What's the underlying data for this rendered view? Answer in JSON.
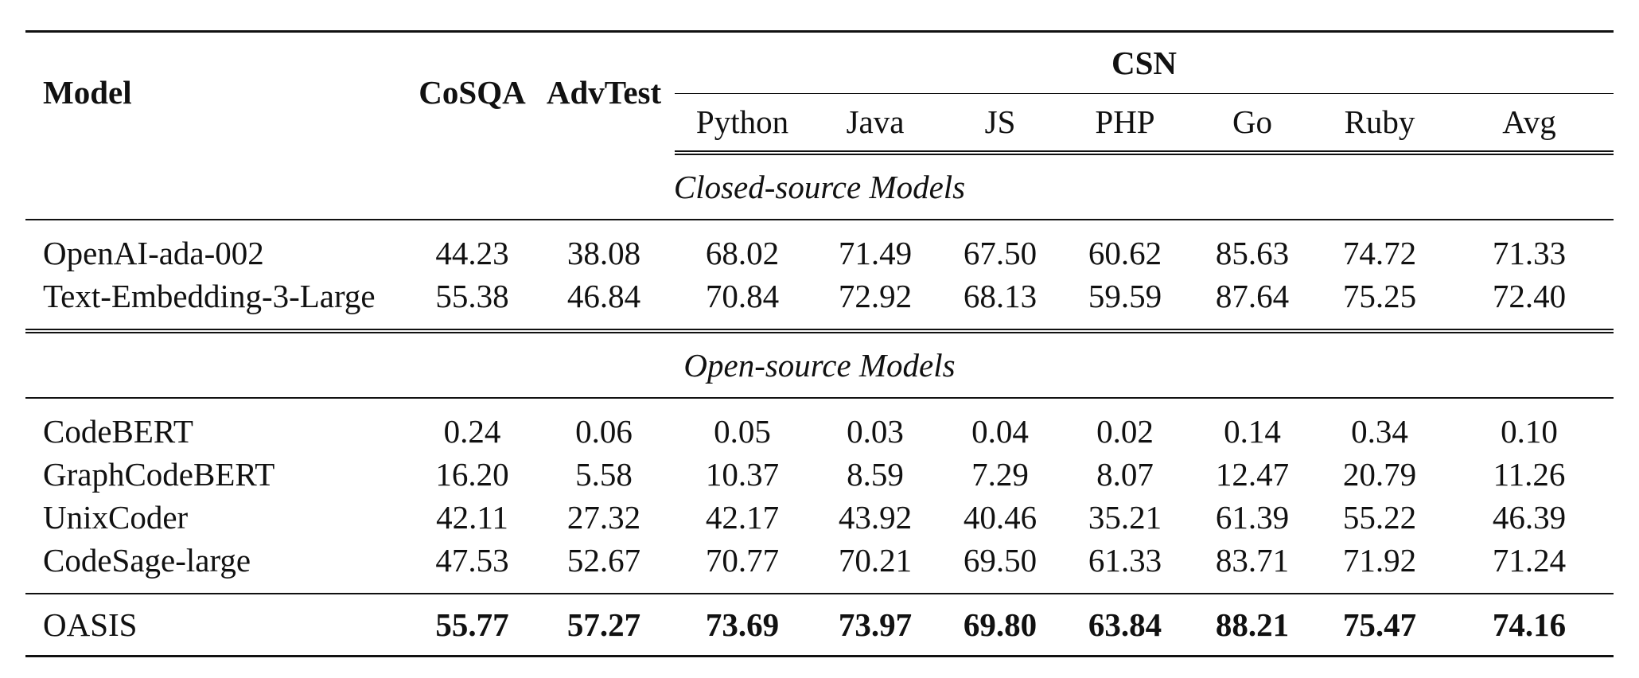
{
  "table": {
    "headers": {
      "model": "Model",
      "cosqa": "CoSQA",
      "advtest": "AdvTest",
      "csn": "CSN",
      "csn_sub": [
        "Python",
        "Java",
        "JS",
        "PHP",
        "Go",
        "Ruby",
        "Avg"
      ]
    },
    "sections": [
      {
        "title": "Closed-source Models",
        "rows": [
          {
            "model": "OpenAI-ada-002",
            "values": [
              "44.23",
              "38.08",
              "68.02",
              "71.49",
              "67.50",
              "60.62",
              "85.63",
              "74.72",
              "71.33"
            ]
          },
          {
            "model": "Text-Embedding-3-Large",
            "values": [
              "55.38",
              "46.84",
              "70.84",
              "72.92",
              "68.13",
              "59.59",
              "87.64",
              "75.25",
              "72.40"
            ]
          }
        ]
      },
      {
        "title": "Open-source Models",
        "rows": [
          {
            "model": "CodeBERT",
            "values": [
              "0.24",
              "0.06",
              "0.05",
              "0.03",
              "0.04",
              "0.02",
              "0.14",
              "0.34",
              "0.10"
            ]
          },
          {
            "model": "GraphCodeBERT",
            "values": [
              "16.20",
              "5.58",
              "10.37",
              "8.59",
              "7.29",
              "8.07",
              "12.47",
              "20.79",
              "11.26"
            ]
          },
          {
            "model": "UnixCoder",
            "values": [
              "42.11",
              "27.32",
              "42.17",
              "43.92",
              "40.46",
              "35.21",
              "61.39",
              "55.22",
              "46.39"
            ]
          },
          {
            "model": "CodeSage-large",
            "values": [
              "47.53",
              "52.67",
              "70.77",
              "70.21",
              "69.50",
              "61.33",
              "83.71",
              "71.92",
              "71.24"
            ]
          }
        ]
      }
    ],
    "highlight_row": {
      "model": "OASIS",
      "values": [
        "55.77",
        "57.27",
        "73.69",
        "73.97",
        "69.80",
        "63.84",
        "88.21",
        "75.47",
        "74.16"
      ]
    }
  }
}
